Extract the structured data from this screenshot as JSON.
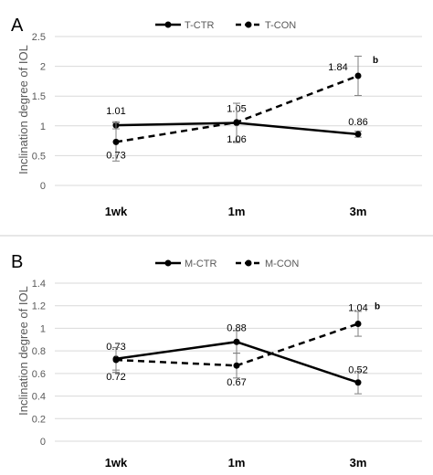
{
  "panels": [
    {
      "letter": "A",
      "chart_data": {
        "type": "line",
        "categories": [
          "1wk",
          "1m",
          "3m"
        ],
        "ylabel": "Inclination degree of IOL",
        "ylim": [
          0,
          2.5
        ],
        "yticks": [
          "0",
          "0.5",
          "1",
          "1.5",
          "2",
          "2.5"
        ],
        "grid": true,
        "legend_position": "top-center",
        "series": [
          {
            "name": "T-CTR",
            "dash": false,
            "values": [
              1.01,
              1.05,
              0.86
            ],
            "errors": [
              0.06,
              0.33,
              0.05
            ],
            "labels": [
              "1.01",
              "1.05",
              "0.86"
            ]
          },
          {
            "name": "T-CON",
            "dash": true,
            "values": [
              0.73,
              1.06,
              1.84
            ],
            "errors": [
              0.32,
              0.32,
              0.33
            ],
            "labels": [
              "0.73",
              "1.06",
              "1.84"
            ]
          }
        ],
        "annotations": [
          {
            "text": "b",
            "category": "3m"
          }
        ]
      }
    },
    {
      "letter": "B",
      "chart_data": {
        "type": "line",
        "categories": [
          "1wk",
          "1m",
          "3m"
        ],
        "ylabel": "Inclination degree of IOL",
        "ylim": [
          0,
          1.4
        ],
        "yticks": [
          "0",
          "0.2",
          "0.4",
          "0.6",
          "0.8",
          "1",
          "1.2",
          "1.4"
        ],
        "grid": true,
        "legend_position": "top-center",
        "series": [
          {
            "name": "M-CTR",
            "dash": false,
            "values": [
              0.73,
              0.88,
              0.52
            ],
            "errors": [
              0.1,
              0.1,
              0.1
            ],
            "labels": [
              "0.73",
              "0.88",
              "0.52"
            ]
          },
          {
            "name": "M-CON",
            "dash": true,
            "values": [
              0.72,
              0.67,
              1.04
            ],
            "errors": [
              0.11,
              0.11,
              0.11
            ],
            "labels": [
              "0.72",
              "0.67",
              "1.04"
            ]
          }
        ],
        "annotations": [
          {
            "text": "b",
            "category": "3m"
          }
        ]
      }
    }
  ]
}
